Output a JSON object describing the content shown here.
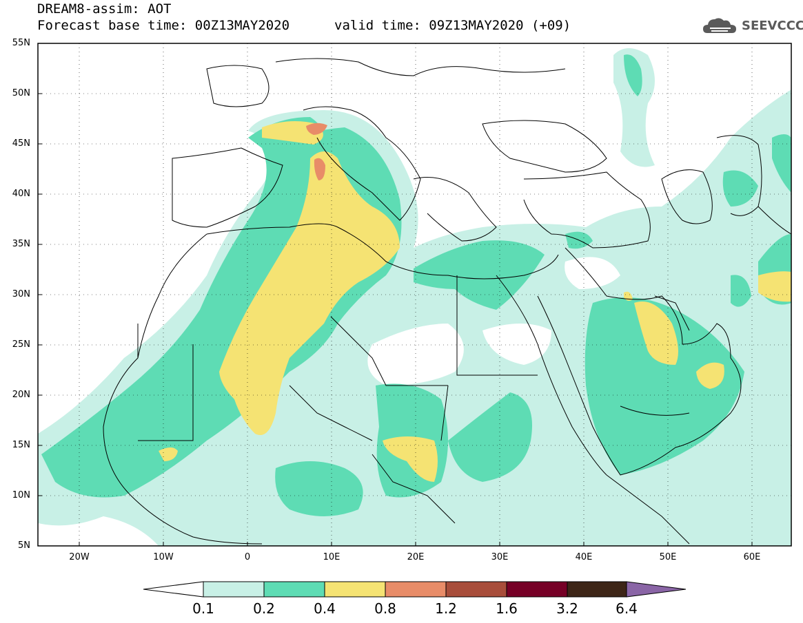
{
  "header": {
    "title": "DREAM8-assim: AOT",
    "base_time": "Forecast base time: 00Z13MAY2020",
    "valid_time": "valid time: 09Z13MAY2020 (+09)",
    "logo_text": "SEEVCCC"
  },
  "axes": {
    "lat_labels": [
      "55N",
      "50N",
      "45N",
      "40N",
      "35N",
      "30N",
      "25N",
      "20N",
      "15N",
      "10N",
      "5N"
    ],
    "lon_labels": [
      "20W",
      "10W",
      "0",
      "10E",
      "20E",
      "30E",
      "40E",
      "50E",
      "60E"
    ]
  },
  "colorbar": {
    "levels": [
      "0.1",
      "0.2",
      "0.4",
      "0.8",
      "1.2",
      "1.6",
      "3.2",
      "6.4"
    ],
    "colors": [
      "#ffffff",
      "#c8f0e6",
      "#5edcb4",
      "#f5e373",
      "#e88c68",
      "#a84d3a",
      "#760026",
      "#3d2517",
      "#8a65a6"
    ]
  },
  "colors": {
    "c1": "#c8f0e6",
    "c2": "#5edcb4",
    "c3": "#f5e373",
    "c4": "#e88c68"
  }
}
